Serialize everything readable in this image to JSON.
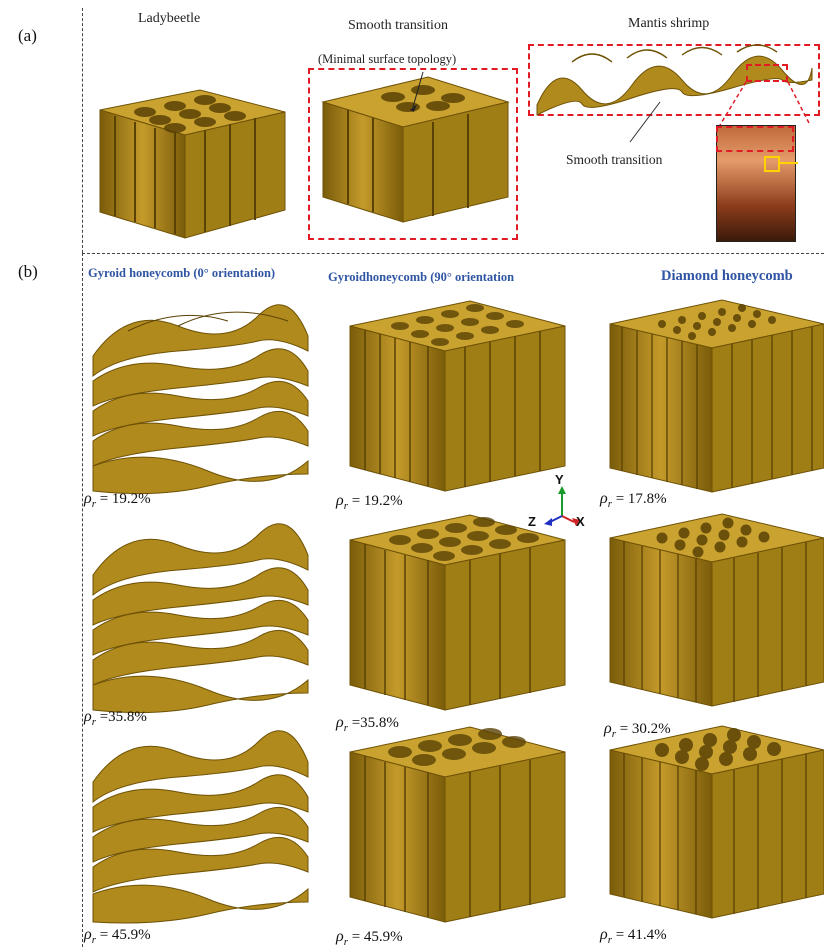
{
  "panel_a": {
    "label": "(a)",
    "ladybeetle_title": "Ladybeetle",
    "transition_title": "Smooth transition",
    "transition_subtitle": "(Minimal surface topology)",
    "mantis_title": "Mantis shrimp",
    "mantis_note": "Smooth  transition"
  },
  "panel_b": {
    "label": "(b)",
    "columns": [
      {
        "title": "Gyroid honeycomb (0° orientation)"
      },
      {
        "title": "Gyroidhoneycomb (90° orientation"
      },
      {
        "title": "Diamond honeycomb"
      }
    ],
    "densities": [
      [
        "= 19.2%",
        "= 19.2%",
        "= 17.8%"
      ],
      [
        "=35.8%",
        "=35.8%",
        "= 30.2%"
      ],
      [
        "= 45.9%",
        "= 45.9%",
        "= 41.4%"
      ]
    ],
    "rho_symbol": "ρ",
    "rho_sub": "r",
    "axes": {
      "y": "Y",
      "z": "Z",
      "x": "X"
    }
  },
  "colors": {
    "gold": "#b08a1c",
    "gold_dark": "#6e5206",
    "gold_light": "#d8b440",
    "red_dash": "#e01b24",
    "blue_title": "#2f55a4"
  }
}
